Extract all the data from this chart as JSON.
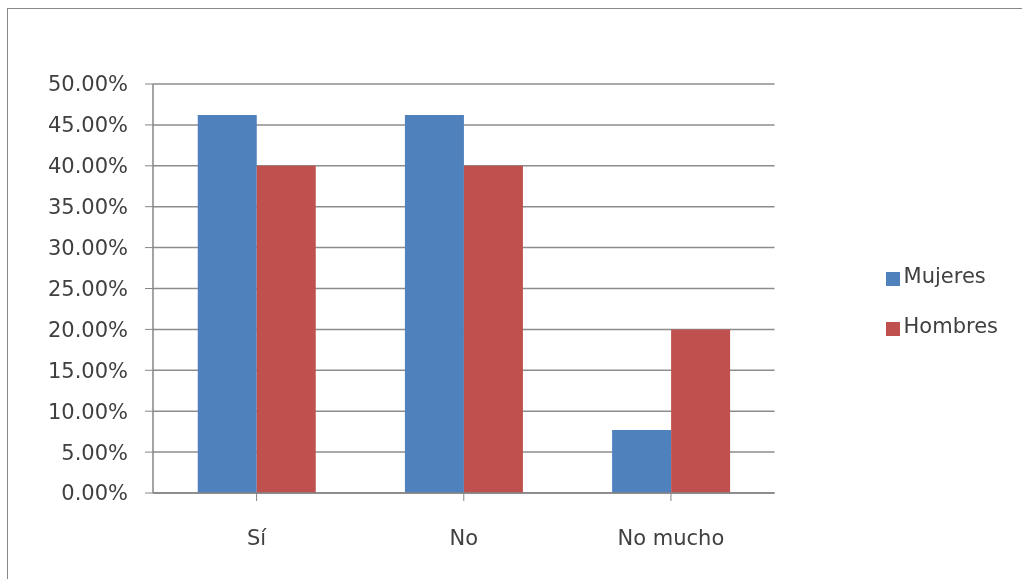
{
  "chart_data": {
    "type": "bar",
    "categories": [
      "Sí",
      "No",
      "No mucho"
    ],
    "series": [
      {
        "name": "Mujeres",
        "color": "#4f81bd",
        "values": [
          46.2,
          46.2,
          7.7
        ]
      },
      {
        "name": "Hombres",
        "color": "#c0504d",
        "values": [
          40,
          40,
          20
        ]
      }
    ],
    "ylim": [
      0,
      50
    ],
    "yticks": [
      {
        "value": 0,
        "label": "0.00%"
      },
      {
        "value": 5,
        "label": "5.00%"
      },
      {
        "value": 10,
        "label": "10.00%"
      },
      {
        "value": 15,
        "label": "15.00%"
      },
      {
        "value": 20,
        "label": "20.00%"
      },
      {
        "value": 25,
        "label": "25.00%"
      },
      {
        "value": 30,
        "label": "30.00%"
      },
      {
        "value": 35,
        "label": "35.00%"
      },
      {
        "value": 40,
        "label": "40.00%"
      },
      {
        "value": 45,
        "label": "45.00%"
      },
      {
        "value": 50,
        "label": "50.00%"
      }
    ],
    "grid": "y",
    "legend": "right"
  }
}
